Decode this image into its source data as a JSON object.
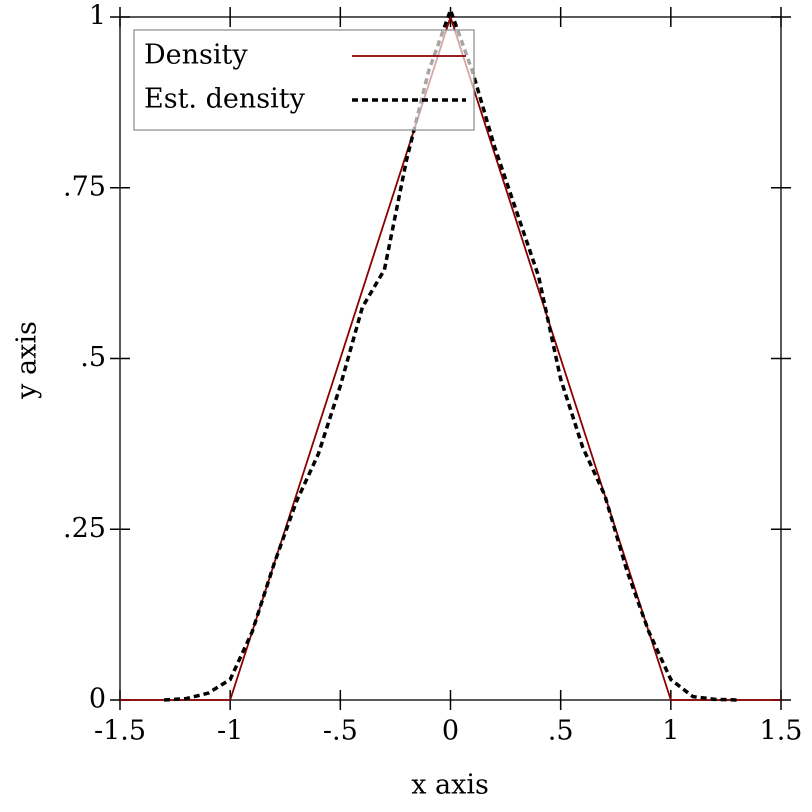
{
  "chart_data": {
    "type": "line",
    "x_label": "x axis",
    "y_label": "y axis",
    "series": [
      {
        "name": "Density",
        "color": "#8b0000",
        "dash": "solid",
        "x": [
          -1.5,
          -1,
          0,
          1,
          1.5
        ],
        "values": [
          0,
          0,
          1,
          0,
          0
        ]
      },
      {
        "name": "Est. density",
        "color": "#000000",
        "dash": "dashed",
        "x": [
          -1.3,
          -1.2,
          -1.1,
          -1.0,
          -0.9,
          -0.8,
          -0.7,
          -0.6,
          -0.5,
          -0.4,
          -0.3,
          -0.2,
          -0.1,
          0,
          0.1,
          0.2,
          0.3,
          0.4,
          0.5,
          0.6,
          0.7,
          0.8,
          0.9,
          1.0,
          1.1,
          1.2,
          1.3
        ],
        "values": [
          0,
          0.002,
          0.01,
          0.03,
          0.1,
          0.2,
          0.29,
          0.36,
          0.46,
          0.575,
          0.63,
          0.79,
          0.92,
          1.01,
          0.92,
          0.81,
          0.715,
          0.62,
          0.47,
          0.37,
          0.3,
          0.19,
          0.1,
          0.03,
          0.005,
          0.001,
          0
        ]
      }
    ],
    "xlim": [
      -1.5,
      1.5
    ],
    "ylim": [
      0,
      1
    ],
    "xticks": [
      {
        "value": -1.5,
        "label": "-1.5"
      },
      {
        "value": -1,
        "label": "-1"
      },
      {
        "value": -0.5,
        "label": "-.5"
      },
      0,
      {
        "value": 0.5,
        "label": ".5"
      },
      1,
      1.5
    ],
    "yticks": [
      0,
      {
        "value": 0.25,
        "label": ".25"
      },
      {
        "value": 0.5,
        "label": ".5"
      },
      {
        "value": 0.75,
        "label": ".75"
      },
      1
    ],
    "legend": "top-left",
    "grid": false
  }
}
